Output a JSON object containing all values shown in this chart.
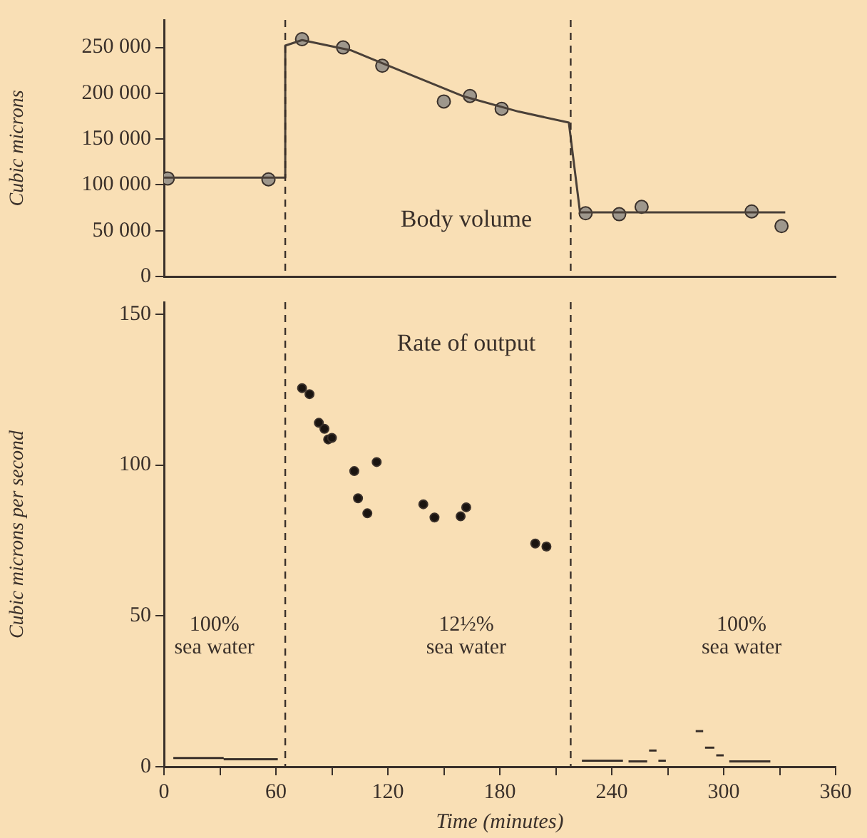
{
  "chart_data": [
    {
      "type": "line",
      "annotations": [
        "Body volume"
      ],
      "ylabel": "Cubic microns",
      "xlim": [
        0,
        360
      ],
      "ylim": [
        0,
        280000
      ],
      "tick_labels": "y",
      "grid": false,
      "legend": false,
      "yticks": [
        {
          "value": 0,
          "label": "0"
        },
        {
          "value": 50000,
          "label": "50 000"
        },
        {
          "value": 100000,
          "label": "100 000"
        },
        {
          "value": 150000,
          "label": "150 000"
        },
        {
          "value": 200000,
          "label": "200 000"
        },
        {
          "value": 250000,
          "label": "250 000"
        }
      ],
      "ref_lines": [
        {
          "axis": "x",
          "value": 65,
          "line_style": "dashed"
        },
        {
          "axis": "x",
          "value": 218,
          "line_style": "dashed"
        }
      ],
      "series": [
        {
          "color": "#4a4038",
          "marker": "none",
          "x": [
            0,
            65,
            65,
            74,
            100,
            130,
            160,
            190,
            217,
            223,
            333
          ],
          "values": [
            108000,
            108000,
            252000,
            258000,
            247000,
            222000,
            197000,
            180000,
            168000,
            70000,
            70000
          ]
        },
        {
          "type": "scatter",
          "color": "#9e978c",
          "marker": "circle",
          "x": [
            2,
            56,
            74,
            96,
            117,
            150,
            164,
            181,
            226,
            244,
            256,
            315,
            331
          ],
          "values": [
            107000,
            106000,
            259000,
            250000,
            230000,
            191000,
            197000,
            183000,
            69000,
            68000,
            76000,
            71000,
            55000
          ]
        }
      ]
    },
    {
      "type": "scatter",
      "annotations": [
        "Rate of output",
        "100%\nsea water",
        "12½%\nsea water",
        "100%\nsea water"
      ],
      "xlabel": "Time (minutes)",
      "ylabel": "Cubic microns per second",
      "xlim": [
        0,
        360
      ],
      "ylim": [
        0,
        154
      ],
      "grid": false,
      "legend": false,
      "xticks": [
        0,
        {
          "value": 30,
          "label": null
        },
        60,
        {
          "value": 90,
          "label": null
        },
        120,
        {
          "value": 150,
          "label": null
        },
        180,
        {
          "value": 210,
          "label": null
        },
        240,
        {
          "value": 270,
          "label": null
        },
        300,
        {
          "value": 330,
          "label": null
        },
        360
      ],
      "yticks": [
        0,
        50,
        100,
        150
      ],
      "ref_lines": [
        {
          "axis": "x",
          "value": 65,
          "line_style": "dashed"
        },
        {
          "axis": "x",
          "value": 218,
          "line_style": "dashed"
        }
      ],
      "series": [
        {
          "color": "#1a1410",
          "marker": "circle",
          "x": [
            74,
            78,
            83,
            86,
            88,
            90,
            102,
            104,
            109,
            114,
            139,
            145,
            159,
            162,
            199,
            205
          ],
          "values": [
            125.5,
            123.5,
            114,
            112,
            108.5,
            109,
            98,
            89,
            84,
            101,
            87,
            82.6,
            83,
            86,
            74,
            73
          ]
        },
        {
          "type": "line",
          "color": "#3a302a",
          "marker": "none",
          "x": [
            5,
            32,
            null,
            32,
            61,
            null,
            224,
            246,
            null,
            249,
            259,
            null,
            260,
            264,
            null,
            265,
            269,
            null,
            285,
            289,
            null,
            290,
            295,
            null,
            296,
            300,
            null,
            303,
            325
          ],
          "values": [
            2.9,
            2.9,
            null,
            2.5,
            2.5,
            null,
            2,
            2,
            null,
            1.8,
            1.8,
            null,
            5.4,
            5.4,
            null,
            2,
            2,
            null,
            11.8,
            11.8,
            null,
            6.3,
            6.3,
            null,
            3.8,
            3.8,
            null,
            1.8,
            1.8
          ]
        }
      ]
    }
  ]
}
